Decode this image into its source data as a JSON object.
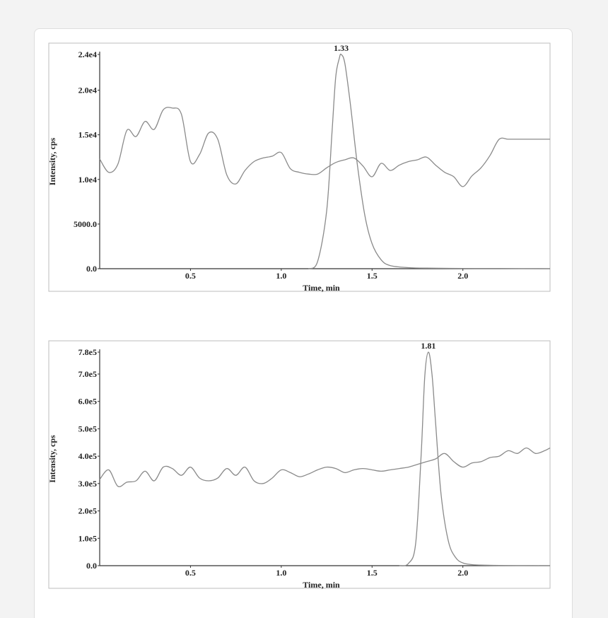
{
  "chart_data": [
    {
      "type": "line",
      "xlabel": "Time, min",
      "ylabel": "Intensity, cps",
      "xlim": [
        0.0,
        2.48
      ],
      "ylim": [
        0,
        24000
      ],
      "x_ticks": [
        0.5,
        1.0,
        1.5,
        2.0
      ],
      "x_tick_labels": [
        "0.5",
        "1.0",
        "1.5",
        "2.0"
      ],
      "y_ticks": [
        0,
        5000,
        10000,
        15000,
        20000,
        24000
      ],
      "y_tick_labels": [
        "0.0",
        "5000.0",
        "1.0e4",
        "1.5e4",
        "2.0e4",
        "2.4e4"
      ],
      "annotations": [
        {
          "text": "1.33",
          "x": 1.33,
          "y": 24000
        }
      ],
      "grid": false,
      "series": [
        {
          "values_x": [
            0.0,
            0.05,
            0.1,
            0.15,
            0.2,
            0.25,
            0.3,
            0.35,
            0.4,
            0.45,
            0.5,
            0.55,
            0.6,
            0.65,
            0.7,
            0.75,
            0.8,
            0.85,
            0.9,
            0.95,
            1.0,
            1.05,
            1.1,
            1.15,
            1.2,
            1.25,
            1.3,
            1.35,
            1.4,
            1.45,
            1.5,
            1.55,
            1.6,
            1.65,
            1.7,
            1.75,
            1.8,
            1.85,
            1.9,
            1.95,
            2.0,
            2.05,
            2.1,
            2.15,
            2.2,
            2.25,
            2.3,
            2.35,
            2.4,
            2.45,
            2.48
          ],
          "values_y": [
            12300,
            10800,
            11700,
            15500,
            14800,
            16500,
            15600,
            17800,
            18000,
            17300,
            12000,
            12800,
            15200,
            14500,
            10500,
            9500,
            11000,
            12000,
            12400,
            12600,
            13000,
            11200,
            10800,
            10600,
            10600,
            11300,
            11900,
            12200,
            12400,
            11500,
            10300,
            11800,
            11000,
            11600,
            12000,
            12200,
            12500,
            11600,
            10800,
            10300,
            9200,
            10400,
            11300,
            12700,
            14500,
            14500,
            14500,
            14500,
            14500,
            14500,
            14500
          ]
        },
        {
          "values_x": [
            1.15,
            1.2,
            1.25,
            1.28,
            1.3,
            1.32,
            1.33,
            1.35,
            1.38,
            1.42,
            1.46,
            1.5,
            1.55,
            1.6,
            1.7,
            1.8,
            2.0,
            2.2,
            2.48
          ],
          "values_y": [
            0,
            800,
            6500,
            15500,
            21500,
            23600,
            24000,
            23000,
            18500,
            11500,
            6000,
            2800,
            1000,
            350,
            120,
            60,
            30,
            20,
            0
          ]
        }
      ]
    },
    {
      "type": "line",
      "xlabel": "Time, min",
      "ylabel": "Intensity, cps",
      "xlim": [
        0.0,
        2.48
      ],
      "ylim": [
        0,
        780000
      ],
      "x_ticks": [
        0.5,
        1.0,
        1.5,
        2.0
      ],
      "x_tick_labels": [
        "0.5",
        "1.0",
        "1.5",
        "2.0"
      ],
      "y_ticks": [
        0,
        100000,
        200000,
        300000,
        400000,
        500000,
        600000,
        700000,
        780000
      ],
      "y_tick_labels": [
        "0.0",
        "1.0e5",
        "2.0e5",
        "3.0e5",
        "4.0e5",
        "5.0e5",
        "6.0e5",
        "7.0e5",
        "7.8e5"
      ],
      "annotations": [
        {
          "text": "1.81",
          "x": 1.81,
          "y": 780000
        }
      ],
      "grid": false,
      "series": [
        {
          "values_x": [
            0.0,
            0.05,
            0.1,
            0.15,
            0.2,
            0.25,
            0.3,
            0.35,
            0.4,
            0.45,
            0.5,
            0.55,
            0.6,
            0.65,
            0.7,
            0.75,
            0.8,
            0.85,
            0.9,
            0.95,
            1.0,
            1.05,
            1.1,
            1.15,
            1.2,
            1.25,
            1.3,
            1.35,
            1.4,
            1.45,
            1.5,
            1.55,
            1.6,
            1.65,
            1.7,
            1.75,
            1.8,
            1.85,
            1.9,
            1.95,
            2.0,
            2.05,
            2.1,
            2.15,
            2.2,
            2.25,
            2.3,
            2.35,
            2.4,
            2.45,
            2.48
          ],
          "values_y": [
            315000,
            350000,
            290000,
            305000,
            310000,
            345000,
            310000,
            360000,
            355000,
            330000,
            360000,
            320000,
            310000,
            320000,
            355000,
            330000,
            360000,
            310000,
            300000,
            320000,
            350000,
            340000,
            325000,
            335000,
            350000,
            360000,
            355000,
            340000,
            350000,
            355000,
            350000,
            345000,
            350000,
            355000,
            360000,
            370000,
            380000,
            390000,
            410000,
            380000,
            360000,
            375000,
            380000,
            395000,
            400000,
            420000,
            410000,
            430000,
            410000,
            420000,
            430000
          ]
        },
        {
          "values_x": [
            1.65,
            1.7,
            1.74,
            1.77,
            1.79,
            1.81,
            1.83,
            1.85,
            1.88,
            1.92,
            1.96,
            2.0,
            2.05,
            2.1,
            2.2,
            2.3,
            2.48
          ],
          "values_y": [
            0,
            8000,
            80000,
            400000,
            690000,
            780000,
            700000,
            520000,
            260000,
            90000,
            30000,
            10000,
            4000,
            2000,
            800,
            300,
            0
          ]
        }
      ]
    }
  ]
}
